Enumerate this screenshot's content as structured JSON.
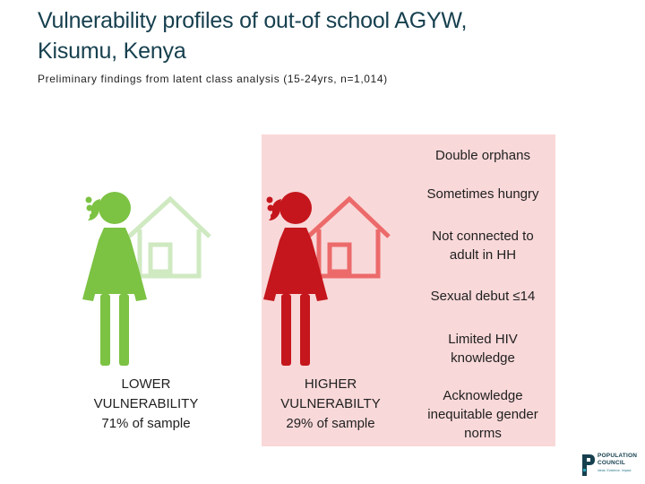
{
  "header": {
    "title_line1": "Vulnerability profiles of out-of school AGYW,",
    "title_line2": "Kisumu, Kenya",
    "subtitle": "Preliminary findings from latent class analysis (15-24yrs, n=1,014)"
  },
  "groups": {
    "lower": {
      "line1": "LOWER",
      "line2": "VULNERABILITY",
      "line3": "71% of sample",
      "color": "#7cc243",
      "house_color": "#cfe9c1"
    },
    "higher": {
      "line1": "HIGHER",
      "line2": "VULNERABILTY",
      "line3": "29% of sample",
      "color": "#c4161c",
      "house_color": "#ec6a6a"
    }
  },
  "traits": {
    "t1": "Double orphans",
    "t2": "Sometimes hungry",
    "t3_line1": "Not connected to",
    "t3_line2": "adult in HH",
    "t4": "Sexual debut ≤14",
    "t5_line1": "Limited HIV",
    "t5_line2": "knowledge",
    "t6_line1": "Acknowledge",
    "t6_line2": "inequitable gender",
    "t6_line3": "norms"
  },
  "colors": {
    "panel": "#f9d8d9",
    "title": "#17404f"
  },
  "logo": {
    "name_line1": "POPULATION",
    "name_line2": "COUNCIL",
    "tagline": "Ideas. Evidence. Impact."
  }
}
